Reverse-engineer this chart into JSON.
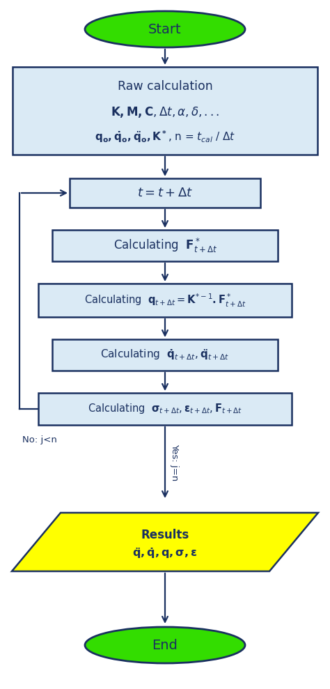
{
  "bg_color": "#ffffff",
  "arrow_color": "#1a3060",
  "box_border_color": "#1a3060",
  "box_fill_color": "#daeaf5",
  "green_fill": "#33dd00",
  "yellow_fill": "#ffff00",
  "text_color": "#1a3060",
  "start_text": "Start",
  "end_text": "End",
  "box1_line1": "Raw calculation",
  "box1_line2": "$\\mathbf{K,M,C},\\Delta t,\\alpha,\\delta,...$",
  "box1_line3": "$\\mathbf{q_o,\\dot{q}_o,\\ddot{q}_o,K^*}$, n = $t_{cal}$ / $\\Delta t$",
  "box2_text": "$t = t + \\Delta t$",
  "box3_text": "Calculating  $\\mathbf{F}^*_{t+\\Delta t}$",
  "box4_text": "Calculating  $\\mathbf{q}_{t+\\Delta t} = \\mathbf{K}^{*-1}\\mathbf{.F}^*_{t+\\Delta t}$",
  "box5_text": "Calculating  $\\mathbf{\\dot{q}}_{t+\\Delta t},\\mathbf{\\ddot{q}}_{t+\\Delta t}$",
  "box6_text": "Calculating  $\\mathbf{\\sigma}_{t+\\Delta t},\\mathbf{\\varepsilon}_{t+\\Delta t},\\mathbf{F}_{t+\\Delta t}$",
  "result_line1": "Results",
  "result_line2": "$\\mathbf{\\ddot{q},\\dot{q},q,\\sigma,\\varepsilon}$",
  "no_label": "No: j<n",
  "yes_label": "Yes: j=n",
  "figw": 4.74,
  "figh": 9.89,
  "dpi": 100
}
